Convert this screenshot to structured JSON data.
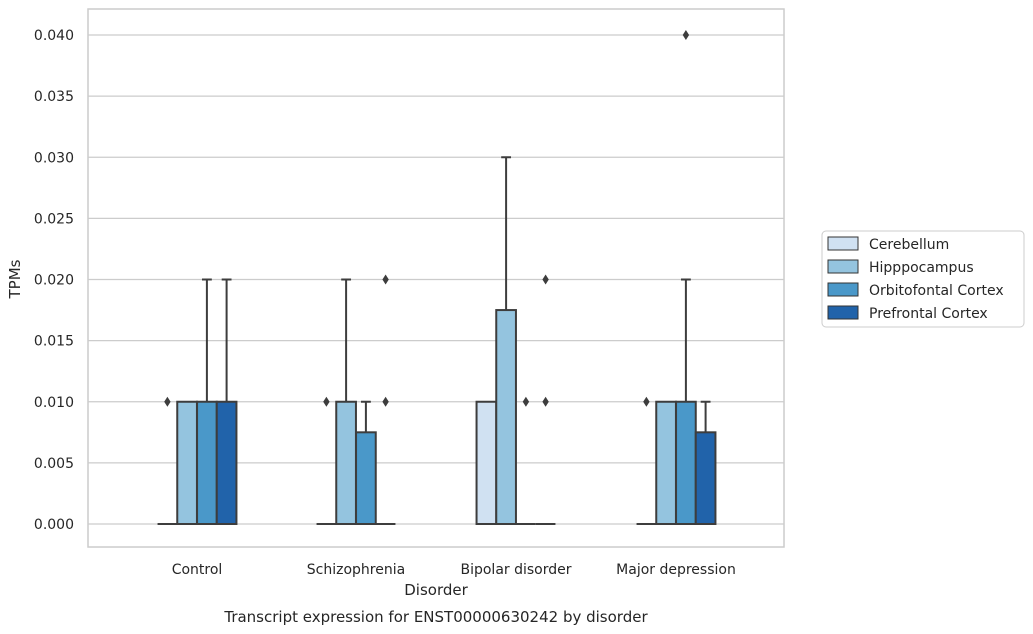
{
  "chart_data": {
    "type": "box",
    "caption": "Transcript expression for ENST00000630242 by disorder",
    "xlabel": "Disorder",
    "ylabel": "TPMs",
    "ylim": [
      -0.002,
      0.042
    ],
    "yticks": [
      "0.000",
      "0.005",
      "0.010",
      "0.015",
      "0.020",
      "0.025",
      "0.030",
      "0.035",
      "0.040"
    ],
    "ytick_values": [
      0,
      0.005,
      0.01,
      0.015,
      0.02,
      0.025,
      0.03,
      0.035,
      0.04
    ],
    "grid": true,
    "legend_position": "right",
    "categories": [
      "Control",
      "Schizophrenia",
      "Bipolar disorder",
      "Major depression"
    ],
    "series": [
      {
        "name": "Cerebellum",
        "color": "#d0e1f2",
        "boxes": [
          {
            "q1": 0,
            "median": 0,
            "q3": 0,
            "whisker_low": 0,
            "whisker_high": 0,
            "outliers": [
              0.01
            ]
          },
          {
            "q1": 0,
            "median": 0,
            "q3": 0,
            "whisker_low": 0,
            "whisker_high": 0,
            "outliers": [
              0.01
            ]
          },
          {
            "q1": 0,
            "median": 0,
            "q3": 0.01,
            "whisker_low": 0,
            "whisker_high": 0.01,
            "outliers": []
          },
          {
            "q1": 0,
            "median": 0,
            "q3": 0,
            "whisker_low": 0,
            "whisker_high": 0,
            "outliers": [
              0.01
            ]
          }
        ]
      },
      {
        "name": "Hipppocampus",
        "color": "#94c4df",
        "boxes": [
          {
            "q1": 0,
            "median": 0,
            "q3": 0.01,
            "whisker_low": 0,
            "whisker_high": 0.01,
            "outliers": []
          },
          {
            "q1": 0,
            "median": 0,
            "q3": 0.01,
            "whisker_low": 0,
            "whisker_high": 0.02,
            "outliers": []
          },
          {
            "q1": 0,
            "median": 0,
            "q3": 0.0175,
            "whisker_low": 0,
            "whisker_high": 0.03,
            "outliers": []
          },
          {
            "q1": 0,
            "median": 0,
            "q3": 0.01,
            "whisker_low": 0,
            "whisker_high": 0.01,
            "outliers": []
          }
        ]
      },
      {
        "name": "Orbitofontal Cortex",
        "color": "#4a98c9",
        "boxes": [
          {
            "q1": 0,
            "median": 0,
            "q3": 0.01,
            "whisker_low": 0,
            "whisker_high": 0.02,
            "outliers": []
          },
          {
            "q1": 0,
            "median": 0,
            "q3": 0.0075,
            "whisker_low": 0,
            "whisker_high": 0.01,
            "outliers": []
          },
          {
            "q1": 0,
            "median": 0,
            "q3": 0,
            "whisker_low": 0,
            "whisker_high": 0,
            "outliers": [
              0.01
            ]
          },
          {
            "q1": 0,
            "median": 0,
            "q3": 0.01,
            "whisker_low": 0,
            "whisker_high": 0.02,
            "outliers": [
              0.04
            ]
          }
        ]
      },
      {
        "name": "Prefrontal Cortex",
        "color": "#2163aa",
        "boxes": [
          {
            "q1": 0,
            "median": 0,
            "q3": 0.01,
            "whisker_low": 0,
            "whisker_high": 0.02,
            "outliers": []
          },
          {
            "q1": 0,
            "median": 0,
            "q3": 0,
            "whisker_low": 0,
            "whisker_high": 0,
            "outliers": [
              0.01,
              0.02
            ]
          },
          {
            "q1": 0,
            "median": 0,
            "q3": 0,
            "whisker_low": 0,
            "whisker_high": 0,
            "outliers": [
              0.01,
              0.02
            ]
          },
          {
            "q1": 0,
            "median": 0,
            "q3": 0.0075,
            "whisker_low": 0,
            "whisker_high": 0.01,
            "outliers": []
          }
        ]
      }
    ]
  }
}
